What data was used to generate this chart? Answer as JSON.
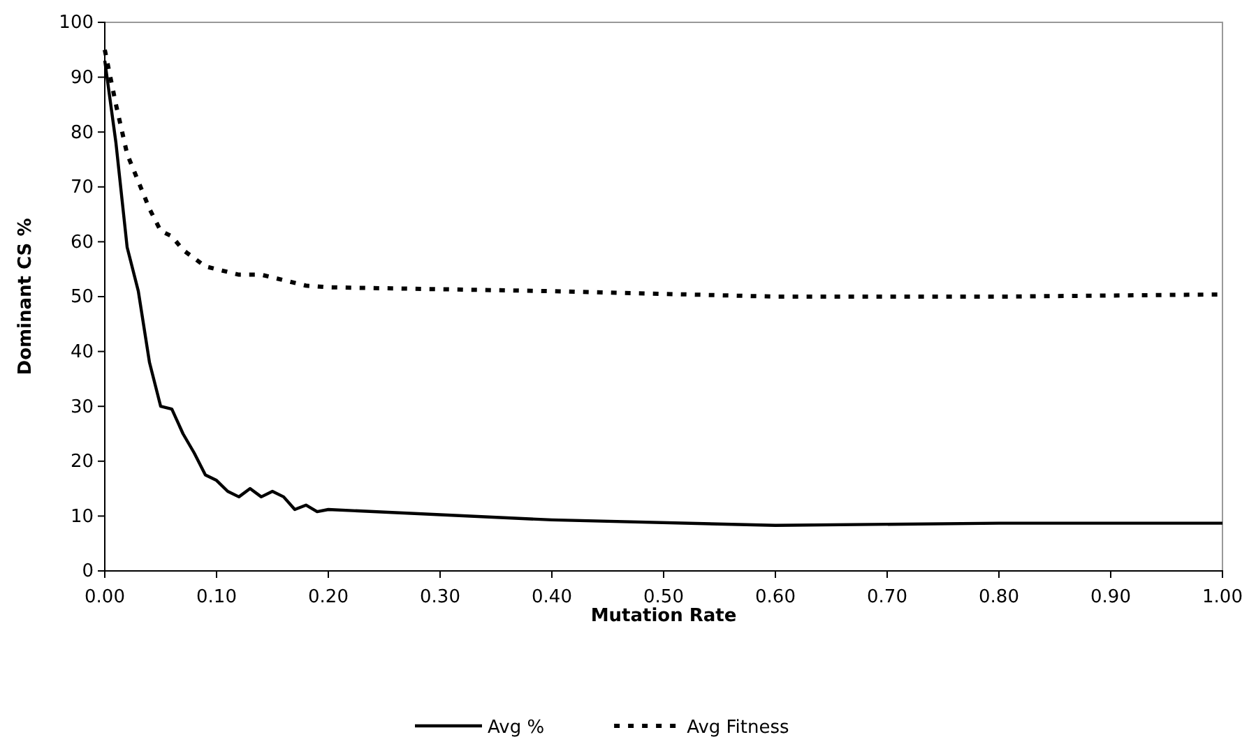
{
  "chart_data": {
    "type": "line",
    "xlabel": "Mutation Rate",
    "ylabel": "Dominant CS %",
    "xlim": [
      0,
      1
    ],
    "xticks": [
      {
        "value": 0,
        "label": "0.00"
      },
      {
        "value": 0.1,
        "label": "0.10"
      },
      {
        "value": 0.2,
        "label": "0.20"
      },
      {
        "value": 0.3,
        "label": "0.30"
      },
      {
        "value": 0.4,
        "label": "0.40"
      },
      {
        "value": 0.5,
        "label": "0.50"
      },
      {
        "value": 0.6,
        "label": "0.60"
      },
      {
        "value": 0.7,
        "label": "0.70"
      },
      {
        "value": 0.8,
        "label": "0.80"
      },
      {
        "value": 0.9,
        "label": "0.90"
      },
      {
        "value": 1,
        "label": "1.00"
      }
    ],
    "ylim": [
      0,
      100
    ],
    "yticks": [
      0,
      10,
      20,
      30,
      40,
      50,
      60,
      70,
      80,
      90,
      100
    ],
    "grid": false,
    "legend": "bottom",
    "marker": "none",
    "series": [
      {
        "name": "Avg %",
        "color": "#000000",
        "line_style": "solid",
        "x": [
          0,
          0.01,
          0.02,
          0.03,
          0.04,
          0.05,
          0.06,
          0.07,
          0.08,
          0.09,
          0.1,
          0.11,
          0.12,
          0.13,
          0.14,
          0.15,
          0.16,
          0.17,
          0.18,
          0.19,
          0.2,
          0.4,
          0.6,
          0.8,
          1.0
        ],
        "values": [
          93,
          78,
          59,
          51,
          38,
          30,
          29.5,
          25,
          21.5,
          17.5,
          16.5,
          14.5,
          13.5,
          15,
          13.5,
          14.5,
          13.5,
          11.2,
          12,
          10.8,
          11.2,
          9.3,
          8.3,
          8.7,
          8.7
        ]
      },
      {
        "name": "Avg Fitness",
        "color": "#000000",
        "line_style": "dotted",
        "x": [
          0,
          0.01,
          0.02,
          0.03,
          0.04,
          0.05,
          0.06,
          0.07,
          0.08,
          0.09,
          0.1,
          0.12,
          0.14,
          0.16,
          0.18,
          0.2,
          0.4,
          0.6,
          0.8,
          1.0
        ],
        "values": [
          95,
          85,
          76,
          71,
          66,
          62,
          61,
          58.5,
          57,
          55.5,
          55,
          54,
          54,
          53,
          52,
          51.7,
          51,
          50,
          50,
          50.4
        ]
      }
    ]
  }
}
